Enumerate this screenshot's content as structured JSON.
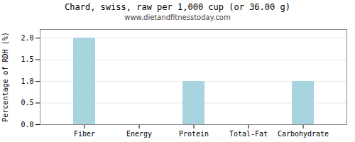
{
  "chart_data": {
    "type": "bar",
    "title": "Chard, swiss, raw per 1,000 cup (or 36.00 g)",
    "subtitle": "www.dietandfitnesstoday.com",
    "ylabel": "Percentage of RDH (%)",
    "categories": [
      "Fiber",
      "Energy",
      "Protein",
      "Total-Fat",
      "Carbohydrate"
    ],
    "values": [
      2.0,
      0.0,
      1.0,
      0.0,
      1.0
    ],
    "color": "#a8d4e0",
    "ylim": [
      0,
      2.2
    ],
    "yticks": [
      {
        "value": 0,
        "label": "0.0"
      },
      0.5,
      {
        "value": 1,
        "label": "1.0"
      },
      1.5,
      {
        "value": 2,
        "label": "2.0"
      }
    ],
    "grid": true
  }
}
